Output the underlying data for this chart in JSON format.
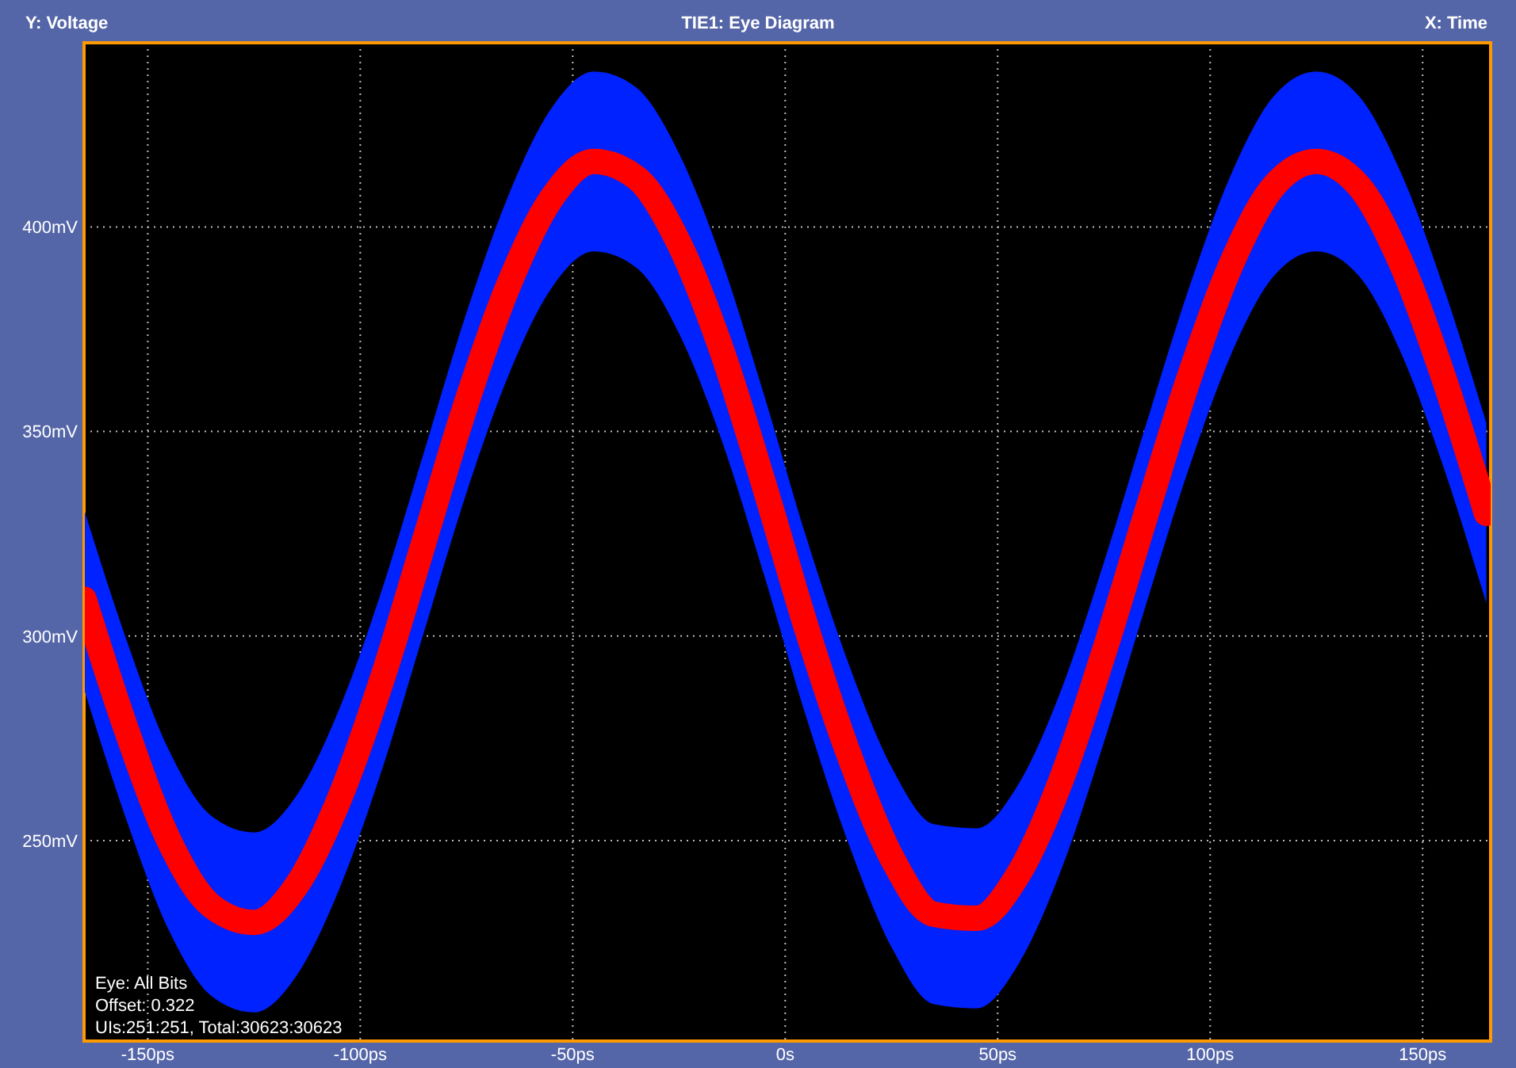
{
  "chart_data": {
    "type": "line",
    "title": "TIE1: Eye Diagram",
    "xlabel": "X: Time",
    "ylabel": "Y: Voltage",
    "x": [
      -165,
      -155,
      -145,
      -135,
      -125,
      -115,
      -105,
      -95,
      -85,
      -75,
      -65,
      -55,
      -45,
      -35,
      -25,
      -15,
      -5,
      5,
      15,
      25,
      35,
      45,
      55,
      65,
      75,
      85,
      95,
      105,
      115,
      125,
      135,
      145,
      155,
      165
    ],
    "series": [
      {
        "color": "#ff0000",
        "values": [
          309,
          277,
          250,
          234,
          230,
          239,
          260,
          289,
          323,
          357,
          386,
          407,
          416,
          412,
          396,
          370,
          337,
          302,
          271,
          246,
          232,
          231,
          242,
          265,
          296,
          330,
          363,
          391,
          410,
          416,
          410,
          391,
          363,
          330
        ],
        "lower": [
          287,
          255,
          228,
          212,
          208,
          217,
          238,
          267,
          301,
          335,
          364,
          385,
          394,
          390,
          374,
          348,
          315,
          280,
          249,
          224,
          210,
          209,
          220,
          243,
          274,
          308,
          341,
          369,
          388,
          394,
          388,
          369,
          341,
          308
        ],
        "upper": [
          331,
          299,
          272,
          256,
          252,
          261,
          282,
          311,
          345,
          379,
          408,
          429,
          438,
          434,
          418,
          392,
          359,
          324,
          293,
          268,
          254,
          253,
          264,
          287,
          318,
          352,
          385,
          413,
          432,
          438,
          432,
          413,
          385,
          352
        ]
      }
    ],
    "xlim": [
      -165,
      166
    ],
    "ylim": [
      201,
      445
    ],
    "xticks": [
      {
        "value": -150,
        "label": "-150ps"
      },
      {
        "value": -100,
        "label": "-100ps"
      },
      {
        "value": -50,
        "label": "-50ps"
      },
      {
        "value": 0,
        "label": "0s"
      },
      {
        "value": 50,
        "label": "50ps"
      },
      {
        "value": 100,
        "label": "100ps"
      },
      {
        "value": 150,
        "label": "150ps"
      }
    ],
    "yticks": [
      {
        "value": 250,
        "label": "250mV"
      },
      {
        "value": 300,
        "label": "300mV"
      },
      {
        "value": 350,
        "label": "350mV"
      },
      {
        "value": 400,
        "label": "400mV"
      }
    ],
    "grid": true,
    "marker": "none",
    "line_style": "solid",
    "annotations": [
      "Eye: All Bits",
      "Offset: 0.322",
      "UIs:251:251, Total:30623:30623"
    ]
  }
}
